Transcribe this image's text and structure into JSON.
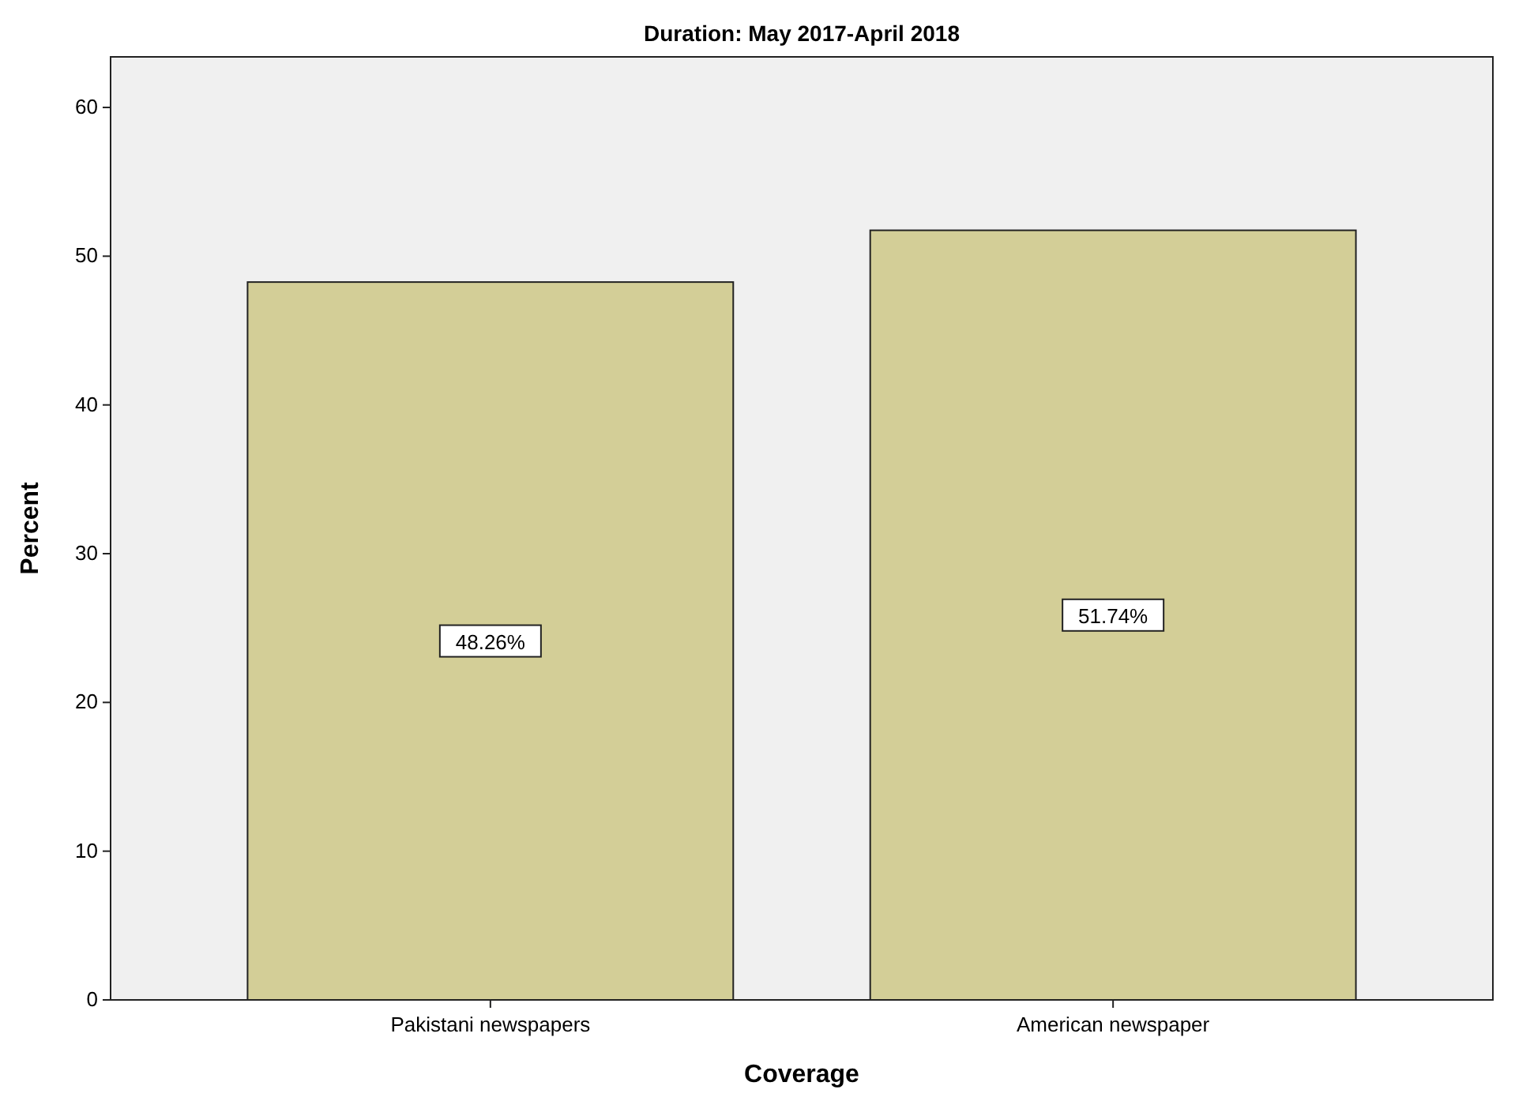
{
  "chart_data": {
    "type": "bar",
    "title": "Duration: May 2017-April 2018",
    "xlabel": "Coverage",
    "ylabel": "Percent",
    "categories": [
      "Pakistani newspapers",
      "American newspaper"
    ],
    "values": [
      48.26,
      51.74
    ],
    "value_labels": [
      "48.26%",
      "51.74%"
    ],
    "color": "#d3ce97",
    "ylim": [
      0,
      63.4
    ],
    "yticks": [
      0,
      10,
      20,
      30,
      40,
      50,
      60
    ],
    "grid": false
  }
}
